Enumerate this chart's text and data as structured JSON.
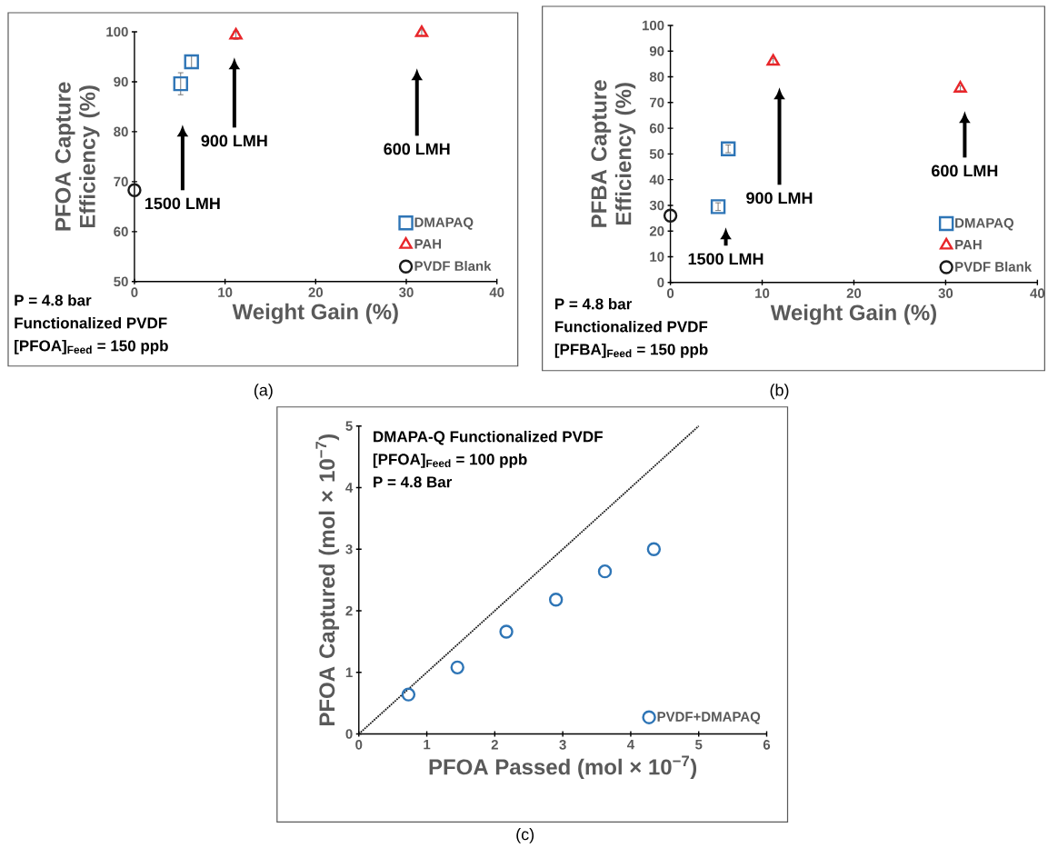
{
  "chart_data": [
    {
      "type": "scatter",
      "xlabel": "Weight Gain (%)",
      "ylabel": "PFOA Capture Efficiency (%)",
      "xlim": [
        0,
        40
      ],
      "xticks": [
        0,
        10,
        20,
        30,
        40
      ],
      "ylim": [
        50,
        100
      ],
      "yticks": [
        50,
        60,
        70,
        80,
        90,
        100
      ],
      "legend": "bottom right",
      "series": [
        {
          "name": "DMAPAQ",
          "color": "#2e75b6",
          "marker": "square",
          "x": [
            5.1,
            6.3
          ],
          "values": [
            89.6,
            94.0
          ],
          "errors": [
            2.2,
            1.2
          ]
        },
        {
          "name": "PAH",
          "color": "#e8262a",
          "marker": "triangle",
          "x": [
            11.2,
            31.7
          ],
          "values": [
            99.3,
            99.8
          ],
          "errors": [
            0.8,
            0.6
          ]
        },
        {
          "name": "PVDF Blank",
          "color": "#1a1a1a",
          "marker": "circle",
          "x": [
            0
          ],
          "values": [
            68.3
          ]
        }
      ],
      "annotations": [
        "P = 4.8 bar",
        "Functionalized PVDF",
        "[PFOA]$_{Feed}$ = 150 ppb",
        "1500 LMH",
        "900 LMH",
        "600 LMH",
        "(a)"
      ]
    },
    {
      "type": "scatter",
      "xlabel": "Weight Gain (%)",
      "ylabel": "PFBA Capture Efficiency (%)",
      "xlim": [
        0,
        40
      ],
      "xticks": [
        0,
        10,
        20,
        30,
        40
      ],
      "ylim": [
        0,
        100
      ],
      "yticks": [
        0,
        10,
        20,
        30,
        40,
        50,
        60,
        70,
        80,
        90,
        100
      ],
      "legend": "bottom right",
      "series": [
        {
          "name": "DMAPAQ",
          "color": "#2e75b6",
          "marker": "square",
          "x": [
            5.2,
            6.3
          ],
          "values": [
            29.5,
            52.0
          ],
          "errors": [
            1.5,
            1.5
          ]
        },
        {
          "name": "PAH",
          "color": "#e8262a",
          "marker": "triangle",
          "x": [
            11.2,
            31.6
          ],
          "values": [
            86.0,
            75.5
          ],
          "errors": [
            1.2,
            1.0
          ]
        },
        {
          "name": "PVDF Blank",
          "color": "#1a1a1a",
          "marker": "circle",
          "x": [
            0
          ],
          "values": [
            26.0
          ]
        }
      ],
      "annotations": [
        "P = 4.8 bar",
        "Functionalized PVDF",
        "[PFBA]$_{Feed}$ = 150 ppb",
        "1500 LMH",
        "900 LMH",
        "600 LMH",
        "(b)"
      ]
    },
    {
      "type": "scatter",
      "xlabel": "PFOA Passed (mol × 10$^{−7}$)",
      "ylabel": "PFOA Captured (mol × 10$^{−7}$)",
      "xlim": [
        0,
        6
      ],
      "xticks": [
        0,
        1,
        2,
        3,
        4,
        5,
        6
      ],
      "ylim": [
        0,
        5
      ],
      "yticks": [
        0,
        1,
        2,
        3,
        4,
        5
      ],
      "legend": "bottom right",
      "series": [
        {
          "name": "PVDF+DMAPAQ",
          "color": "#2e75b6",
          "marker": "circle",
          "x": [
            0.73,
            1.45,
            2.17,
            2.9,
            3.62,
            4.34
          ],
          "values": [
            0.64,
            1.08,
            1.66,
            2.18,
            2.64,
            3.0
          ]
        },
        {
          "type": "line",
          "line_style": "dotted",
          "color": "#1a1a1a",
          "x": [
            0,
            5
          ],
          "values": [
            0,
            5
          ]
        }
      ],
      "annotations": [
        "DMAPA-Q Functionalized PVDF",
        "[PFOA]$_{Feed}$ = 100 ppb",
        "P = 4.8 Bar",
        "(c)"
      ]
    }
  ]
}
